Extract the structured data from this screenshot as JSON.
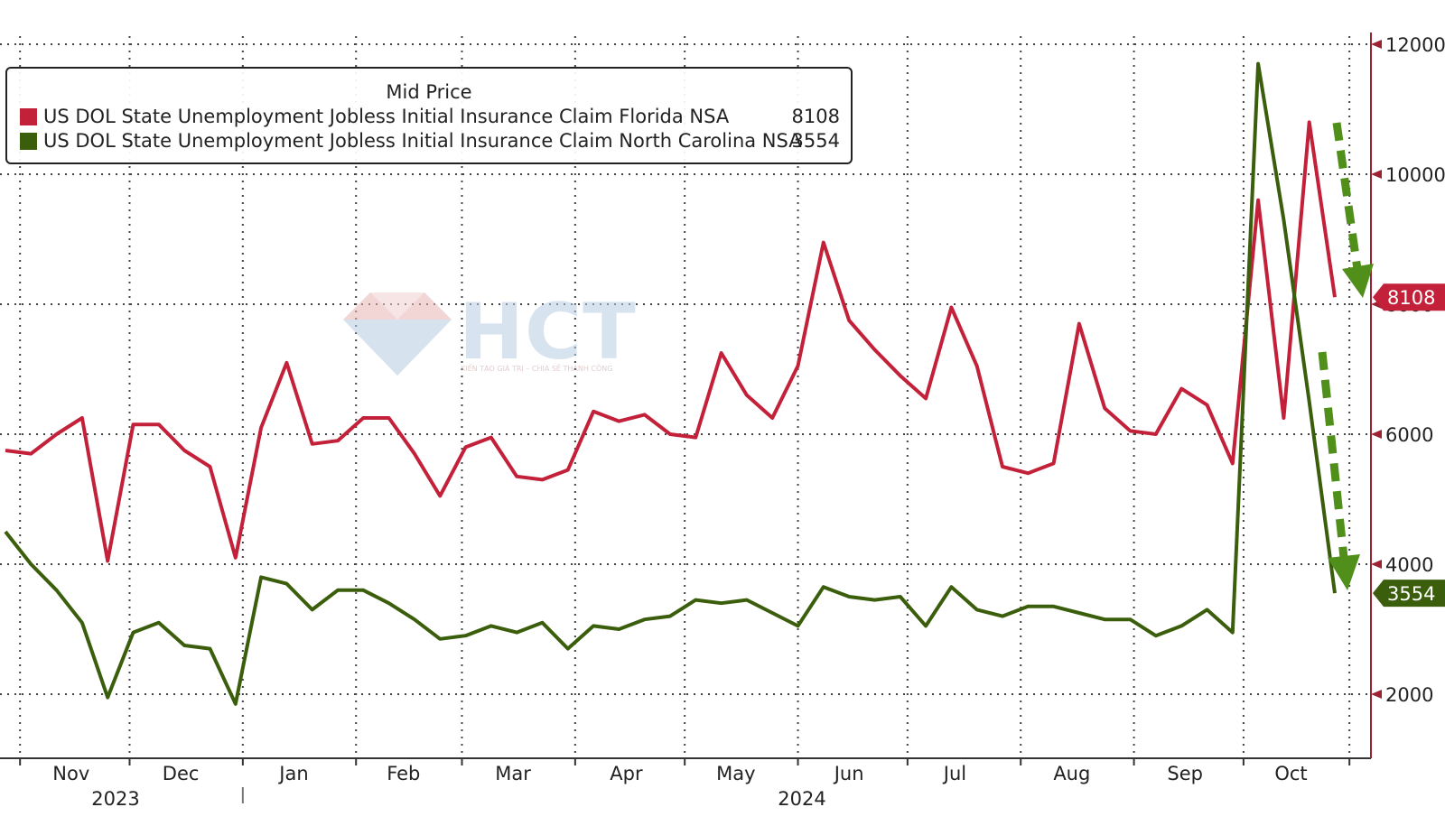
{
  "colors": {
    "florida": "#c3213a",
    "north_carolina": "#3b5e0c",
    "arrow": "#4f8f1a",
    "axis": "#333333",
    "right_axis": "#9a2233",
    "grid": "#444444"
  },
  "legend": {
    "title": "Mid Price",
    "items": [
      {
        "label": "US DOL State Unemployment Jobless Initial Insurance Claim Florida NSA",
        "value": "8108",
        "color": "#c3213a"
      },
      {
        "label": "US DOL State Unemployment Jobless Initial Insurance Claim North Carolina NSA",
        "value": "3554",
        "color": "#3b5e0c"
      }
    ]
  },
  "watermark": {
    "text": "HCT",
    "subtext": "KIẾN TẠO GIÁ TRỊ – CHIA SẺ THÀNH CÔNG"
  },
  "chart_data": {
    "type": "line",
    "title": "",
    "xlabel": "",
    "ylabel": "",
    "ylim": [
      1200,
      12500
    ],
    "y_ticks": [
      2000,
      4000,
      6000,
      8000,
      10000,
      12000
    ],
    "y_tick_labels": [
      "2000",
      "4000",
      "6000",
      "8000",
      "10000",
      "12000"
    ],
    "x_tick_labels": [
      "Nov",
      "Dec",
      "Jan",
      "Feb",
      "Mar",
      "Apr",
      "May",
      "Jun",
      "Jul",
      "Aug",
      "Sep",
      "Oct"
    ],
    "year_labels": [
      "2023",
      "2024"
    ],
    "grid": true,
    "legend_position": "top-left",
    "x": [
      "2023-10-28",
      "2023-11-04",
      "2023-11-11",
      "2023-11-18",
      "2023-11-25",
      "2023-12-02",
      "2023-12-09",
      "2023-12-16",
      "2023-12-23",
      "2023-12-30",
      "2024-01-06",
      "2024-01-13",
      "2024-01-20",
      "2024-01-27",
      "2024-02-03",
      "2024-02-10",
      "2024-02-17",
      "2024-02-24",
      "2024-03-02",
      "2024-03-09",
      "2024-03-16",
      "2024-03-23",
      "2024-03-30",
      "2024-04-06",
      "2024-04-13",
      "2024-04-20",
      "2024-04-27",
      "2024-05-04",
      "2024-05-11",
      "2024-05-18",
      "2024-05-25",
      "2024-06-01",
      "2024-06-08",
      "2024-06-15",
      "2024-06-22",
      "2024-06-29",
      "2024-07-06",
      "2024-07-13",
      "2024-07-20",
      "2024-07-27",
      "2024-08-03",
      "2024-08-10",
      "2024-08-17",
      "2024-08-24",
      "2024-08-31",
      "2024-09-07",
      "2024-09-14",
      "2024-09-21",
      "2024-09-28",
      "2024-10-05",
      "2024-10-12",
      "2024-10-19",
      "2024-10-26"
    ],
    "series": [
      {
        "name": "US DOL State Unemployment Jobless Initial Insurance Claim Florida NSA",
        "last_value": 8108,
        "values": [
          5750,
          5700,
          6000,
          6250,
          4050,
          6150,
          6150,
          5750,
          5500,
          4100,
          6100,
          7100,
          5850,
          5900,
          6250,
          6250,
          5700,
          5050,
          5800,
          5950,
          5350,
          5300,
          5450,
          6350,
          6200,
          6300,
          6000,
          5950,
          7250,
          6600,
          6250,
          7050,
          8950,
          7750,
          7300,
          6900,
          6550,
          7950,
          7050,
          5500,
          5400,
          5550,
          7700,
          6400,
          6050,
          6000,
          6700,
          6450,
          5550,
          9600,
          6250,
          10800,
          8108
        ]
      },
      {
        "name": "US DOL State Unemployment Jobless Initial Insurance Claim North Carolina NSA",
        "last_value": 3554,
        "values": [
          4500,
          4000,
          3600,
          3100,
          1950,
          2950,
          3100,
          2750,
          2700,
          1850,
          3800,
          3700,
          3300,
          3600,
          3600,
          3400,
          3150,
          2850,
          2900,
          3050,
          2950,
          3100,
          2700,
          3050,
          3000,
          3150,
          3200,
          3450,
          3400,
          3450,
          3250,
          3050,
          3650,
          3500,
          3450,
          3500,
          3050,
          3650,
          3300,
          3200,
          3350,
          3350,
          3250,
          3150,
          3150,
          2900,
          3050,
          3300,
          2950,
          11700,
          9300,
          6500,
          3554
        ]
      }
    ]
  }
}
